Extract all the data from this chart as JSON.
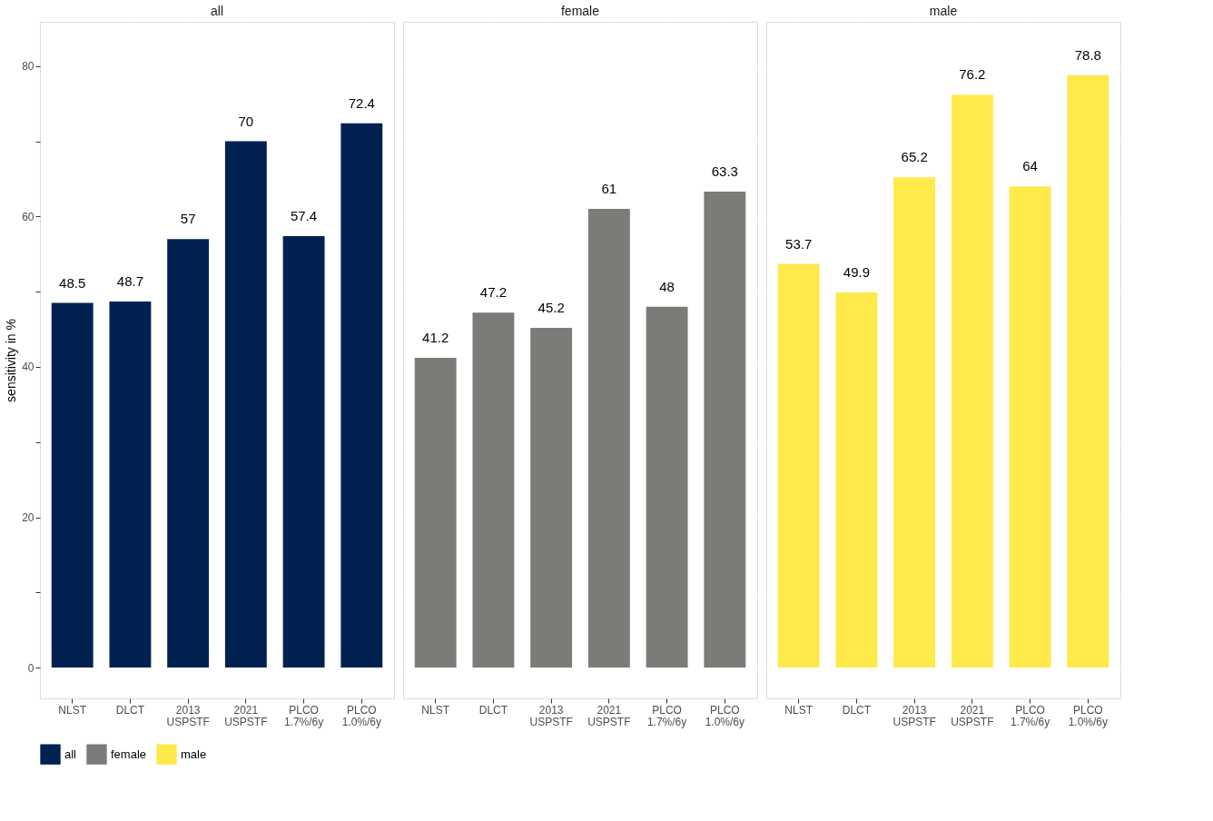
{
  "chart_data": [
    {
      "type": "bar",
      "title": "all",
      "ylabel": "sensitivity in %",
      "categories": [
        "NLST",
        "DLCT",
        "2013\nUSPSTF",
        "2021\nUSPSTF",
        "PLCO\n1.7%/6y",
        "PLCO\n1.0%/6y"
      ],
      "series": [
        {
          "name": "all",
          "color": "#012150",
          "values": [
            48.5,
            48.7,
            57,
            70,
            57.4,
            72.4
          ]
        }
      ],
      "ylim": [
        -4.1,
        85.9
      ],
      "yticks": [
        0,
        {
          "value": 10,
          "label": null
        },
        20,
        {
          "value": 30,
          "label": null
        },
        40,
        {
          "value": 50,
          "label": null
        },
        60,
        {
          "value": 70,
          "label": null
        },
        80
      ],
      "grid": true,
      "data_labels": true,
      "legend": "bottom"
    },
    {
      "type": "bar",
      "title": "female",
      "categories": [
        "NLST",
        "DLCT",
        "2013\nUSPSTF",
        "2021\nUSPSTF",
        "PLCO\n1.7%/6y",
        "PLCO\n1.0%/6y"
      ],
      "series": [
        {
          "name": "female",
          "color": "#7c7b78",
          "values": [
            41.2,
            47.2,
            45.2,
            61,
            48,
            63.3
          ]
        }
      ],
      "ylim": [
        -4.1,
        85.9
      ],
      "yticks": [
        0,
        {
          "value": 10,
          "label": null
        },
        20,
        {
          "value": 30,
          "label": null
        },
        40,
        {
          "value": 50,
          "label": null
        },
        60,
        {
          "value": 70,
          "label": null
        },
        80
      ],
      "grid": true,
      "data_labels": true,
      "legend": "bottom",
      "tick_labels": "x"
    },
    {
      "type": "bar",
      "title": "male",
      "categories": [
        "NLST",
        "DLCT",
        "2013\nUSPSTF",
        "2021\nUSPSTF",
        "PLCO\n1.7%/6y",
        "PLCO\n1.0%/6y"
      ],
      "series": [
        {
          "name": "male",
          "color": "#ffe94b",
          "values": [
            53.7,
            49.9,
            65.2,
            76.2,
            64,
            78.8
          ]
        }
      ],
      "ylim": [
        -4.1,
        85.9
      ],
      "yticks": [
        0,
        {
          "value": 10,
          "label": null
        },
        20,
        {
          "value": 30,
          "label": null
        },
        40,
        {
          "value": 50,
          "label": null
        },
        60,
        {
          "value": 70,
          "label": null
        },
        80
      ],
      "grid": true,
      "data_labels": true,
      "legend": "bottom",
      "tick_labels": "x"
    }
  ]
}
